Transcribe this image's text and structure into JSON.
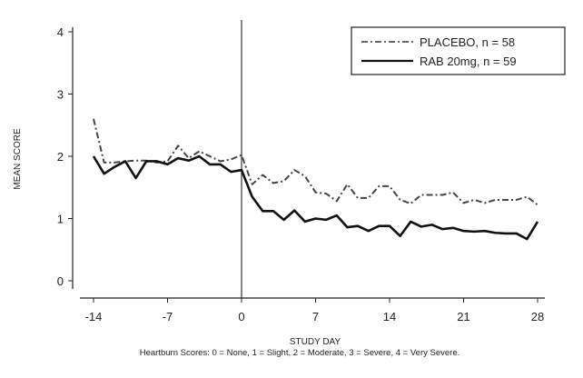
{
  "chart_data": {
    "type": "line",
    "title": "",
    "xlabel": "STUDY DAY",
    "ylabel": "MEAN SCORE",
    "footnote": "Heartburn Scores: 0 = None, 1 = Slight, 2 = Moderate, 3 = Severe, 4 = Very Severe.",
    "xlim": [
      -14,
      28
    ],
    "ylim": [
      0,
      4
    ],
    "xticks": [
      -14,
      -7,
      0,
      7,
      14,
      21,
      28
    ],
    "yticks": [
      0,
      1,
      2,
      3,
      4
    ],
    "reference_line_x": 0,
    "legend_position": "top-right",
    "x": [
      -14,
      -13,
      -12,
      -11,
      -10,
      -9,
      -8,
      -7,
      -6,
      -5,
      -4,
      -3,
      -2,
      -1,
      0,
      1,
      2,
      3,
      4,
      5,
      6,
      7,
      8,
      9,
      10,
      11,
      12,
      13,
      14,
      15,
      16,
      17,
      18,
      19,
      20,
      21,
      22,
      23,
      24,
      25,
      26,
      27,
      28
    ],
    "series": [
      {
        "name": "PLACEBO, n = 58",
        "style": "dash-dot",
        "values": [
          2.6,
          1.9,
          1.9,
          1.92,
          1.93,
          1.93,
          1.9,
          1.92,
          2.17,
          1.97,
          2.08,
          2.0,
          1.92,
          1.95,
          2.02,
          1.55,
          1.7,
          1.57,
          1.6,
          1.78,
          1.68,
          1.42,
          1.4,
          1.28,
          1.55,
          1.33,
          1.33,
          1.52,
          1.52,
          1.3,
          1.24,
          1.38,
          1.38,
          1.38,
          1.42,
          1.25,
          1.3,
          1.25,
          1.3,
          1.3,
          1.3,
          1.35,
          1.22
        ]
      },
      {
        "name": "RAB 20mg, n = 59",
        "style": "solid",
        "values": [
          2.0,
          1.72,
          1.83,
          1.92,
          1.65,
          1.92,
          1.92,
          1.87,
          1.97,
          1.93,
          2.0,
          1.87,
          1.87,
          1.75,
          1.78,
          1.35,
          1.12,
          1.12,
          0.98,
          1.13,
          0.95,
          1.0,
          0.98,
          1.05,
          0.86,
          0.88,
          0.8,
          0.88,
          0.88,
          0.72,
          0.95,
          0.87,
          0.9,
          0.83,
          0.85,
          0.8,
          0.79,
          0.8,
          0.77,
          0.76,
          0.76,
          0.67,
          0.95
        ]
      }
    ]
  }
}
